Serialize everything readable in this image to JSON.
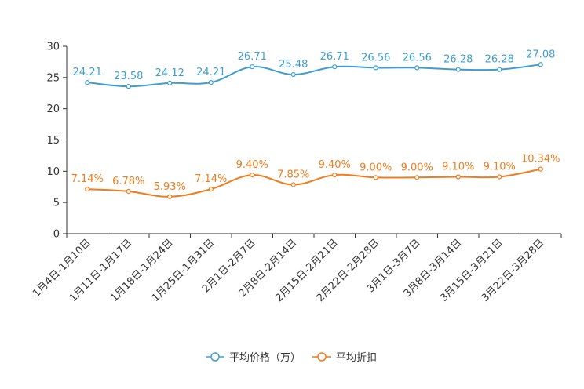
{
  "chart_data": {
    "type": "line",
    "title": "",
    "xlabel": "",
    "ylabel": "",
    "ylim": [
      0,
      30
    ],
    "yticks": [
      0,
      5,
      10,
      15,
      20,
      25,
      30
    ],
    "grid": false,
    "legend_position": "bottom-center",
    "categories": [
      "1月4日-1月10日",
      "1月11日-1月17日",
      "1月18日-1月24日",
      "1月25日-1月31日",
      "2月1日-2月7日",
      "2月8日-2月14日",
      "2月15日-2月21日",
      "2月22日-2月28日",
      "3月1日-3月7日",
      "3月8日-3月14日",
      "3月15日-3月21日",
      "3月22日-3月28日"
    ],
    "series": [
      {
        "name": "平均价格（万）",
        "color": "#3e9dd0",
        "values": [
          24.21,
          23.58,
          24.12,
          24.21,
          26.71,
          25.48,
          26.71,
          26.56,
          26.56,
          26.28,
          26.28,
          27.08
        ],
        "labels": [
          "24.21",
          "23.58",
          "24.12",
          "24.21",
          "26.71",
          "25.48",
          "26.71",
          "26.56",
          "26.56",
          "26.28",
          "26.28",
          "27.08"
        ]
      },
      {
        "name": "平均折扣",
        "color": "#f07c1c",
        "values": [
          7.14,
          6.78,
          5.93,
          7.14,
          9.4,
          7.85,
          9.4,
          9.0,
          9.0,
          9.1,
          9.1,
          10.34
        ],
        "labels": [
          "7.14%",
          "6.78%",
          "5.93%",
          "7.14%",
          "9.40%",
          "7.85%",
          "9.40%",
          "9.00%",
          "9.00%",
          "9.10%",
          "9.10%",
          "10.34%"
        ]
      }
    ]
  }
}
